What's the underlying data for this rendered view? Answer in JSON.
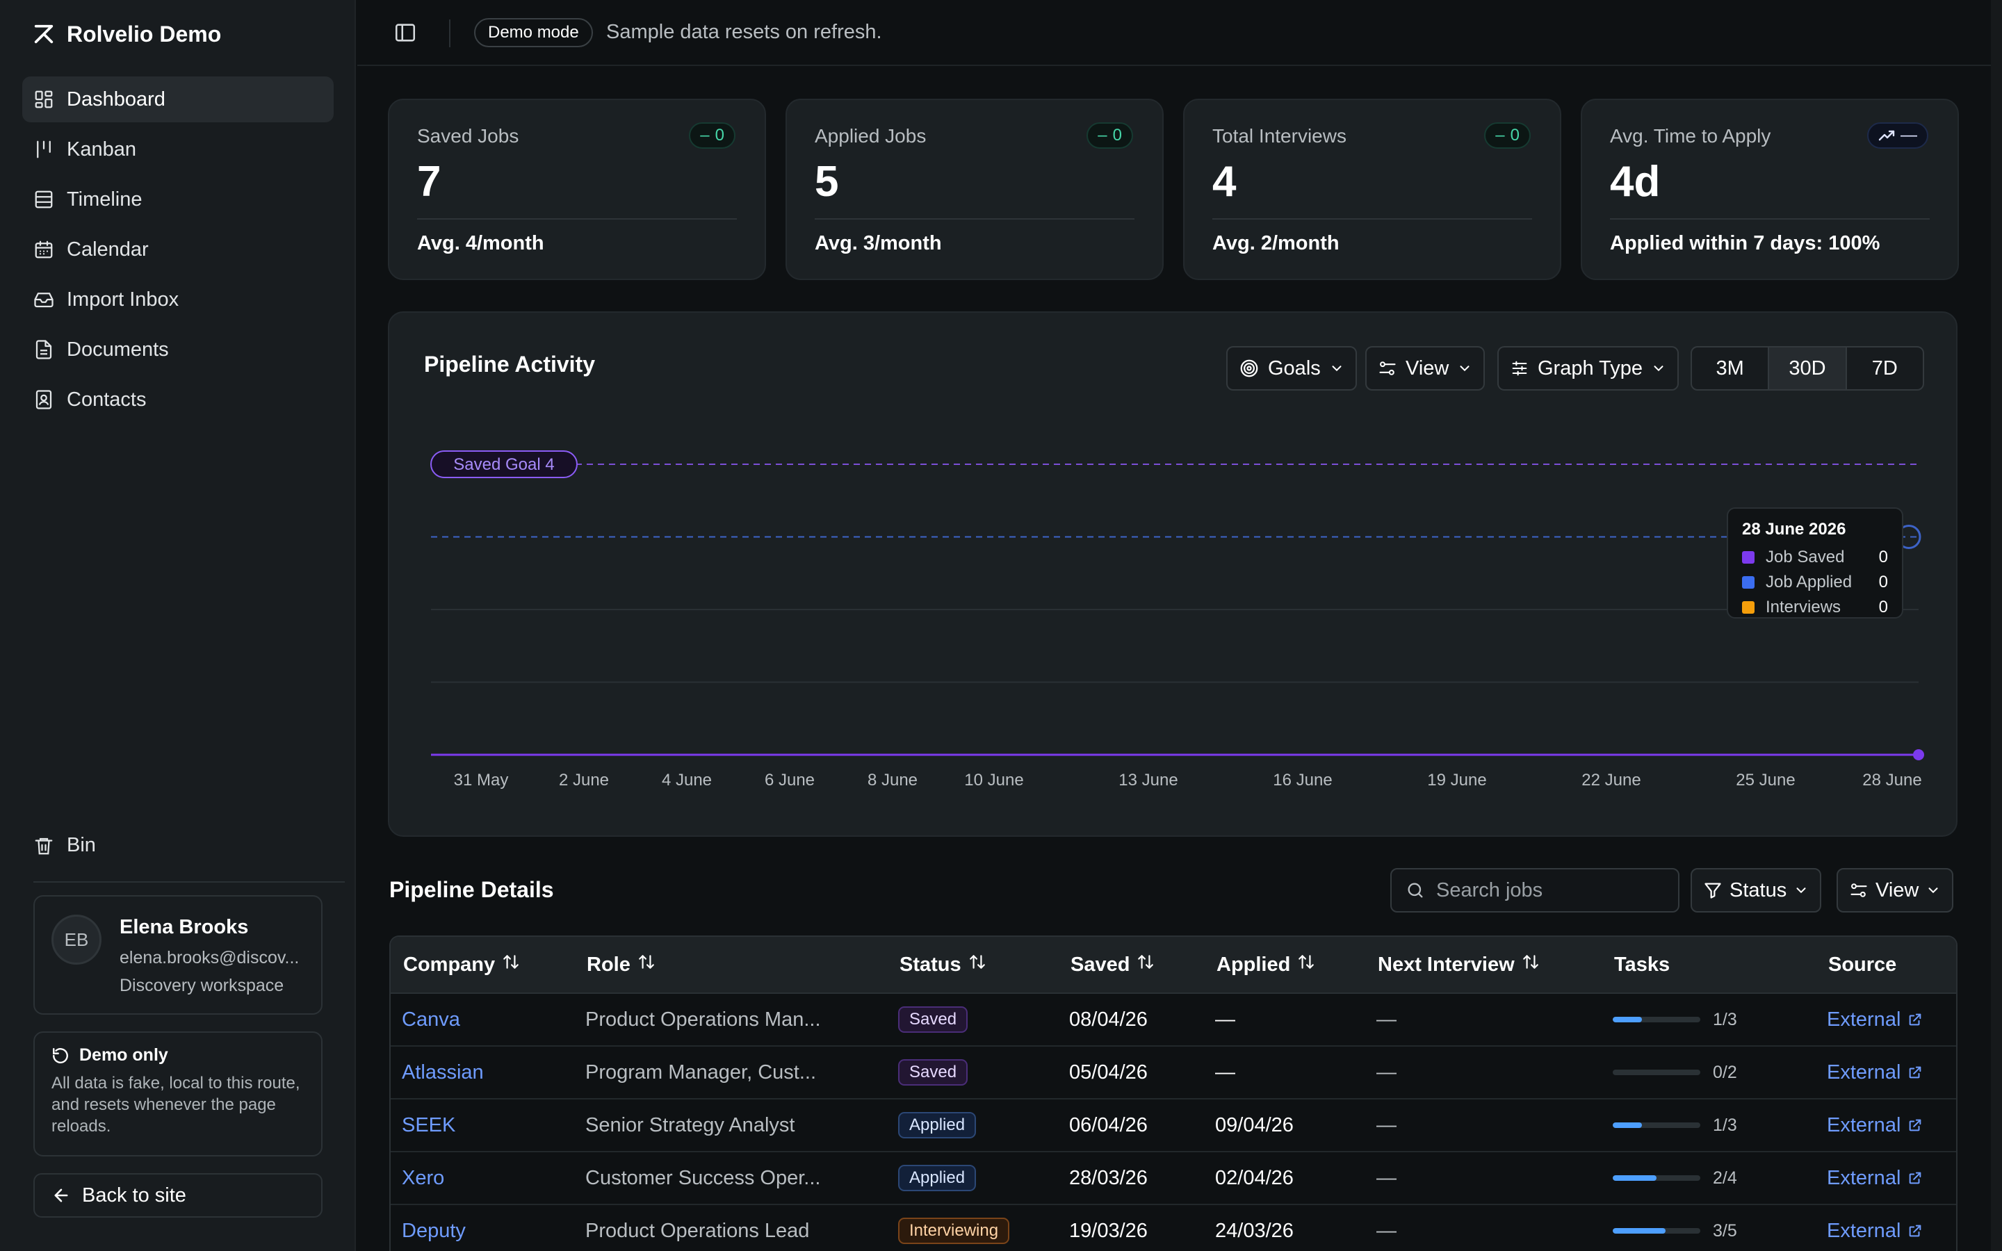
{
  "app": {
    "name": "Rolvelio Demo"
  },
  "sidebar": {
    "items": [
      {
        "label": "Dashboard",
        "icon": "dashboard-icon",
        "active": true
      },
      {
        "label": "Kanban",
        "icon": "kanban-icon"
      },
      {
        "label": "Timeline",
        "icon": "timeline-icon"
      },
      {
        "label": "Calendar",
        "icon": "calendar-icon"
      },
      {
        "label": "Import Inbox",
        "icon": "inbox-icon"
      },
      {
        "label": "Documents",
        "icon": "document-icon"
      },
      {
        "label": "Contacts",
        "icon": "contacts-icon"
      }
    ],
    "bin_label": "Bin",
    "profile": {
      "initials": "EB",
      "name": "Elena Brooks",
      "email": "elena.brooks@discov...",
      "workspace": "Discovery workspace"
    },
    "demo_notice": {
      "title": "Demo only",
      "text": "All data is fake, local to this route, and resets whenever the page reloads."
    },
    "back_label": "Back to site"
  },
  "topbar": {
    "badge": "Demo mode",
    "text": "Sample data resets on refresh."
  },
  "stats": [
    {
      "label": "Saved Jobs",
      "value": "7",
      "trend": "0",
      "footer": "Avg. 4/month"
    },
    {
      "label": "Applied Jobs",
      "value": "5",
      "trend": "0",
      "footer": "Avg. 3/month"
    },
    {
      "label": "Total Interviews",
      "value": "4",
      "trend": "0",
      "footer": "Avg. 2/month"
    },
    {
      "label": "Avg. Time to Apply",
      "value": "4d",
      "trend": "—",
      "footer": "Applied within 7 days: 100%"
    }
  ],
  "pipeline_activity": {
    "title": "Pipeline Activity",
    "controls": {
      "goals": "Goals",
      "view": "View",
      "graph_type": "Graph Type"
    },
    "ranges": [
      "3M",
      "30D",
      "7D"
    ],
    "selected_range": "30D",
    "goal_label": "Saved Goal 4",
    "tooltip": {
      "date": "28 June 2026",
      "rows": [
        {
          "label": "Job Saved",
          "value": "0",
          "color": "#7c3aed"
        },
        {
          "label": "Job Applied",
          "value": "0",
          "color": "#3b6df0"
        },
        {
          "label": "Interviews",
          "value": "0",
          "color": "#f59e0b"
        }
      ]
    }
  },
  "chart_data": {
    "type": "line",
    "x": [
      "31 May",
      "2 June",
      "4 June",
      "6 June",
      "8 June",
      "10 June",
      "13 June",
      "16 June",
      "19 June",
      "22 June",
      "25 June",
      "28 June"
    ],
    "series": [
      {
        "name": "Job Saved",
        "values": [
          0,
          0,
          0,
          0,
          0,
          0,
          0,
          0,
          0,
          0,
          0,
          0
        ],
        "color": "#7c3aed"
      },
      {
        "name": "Job Applied",
        "values": [
          0,
          0,
          0,
          0,
          0,
          0,
          0,
          0,
          0,
          0,
          0,
          0
        ],
        "color": "#3b6df0"
      },
      {
        "name": "Interviews",
        "values": [
          0,
          0,
          0,
          0,
          0,
          0,
          0,
          0,
          0,
          0,
          0,
          0
        ],
        "color": "#f59e0b"
      }
    ],
    "goals": [
      {
        "label": "Saved Goal 4",
        "value": 4,
        "color": "#7c3aed"
      },
      {
        "value": 3,
        "color": "#3b6df0"
      }
    ],
    "ylim": [
      0,
      4
    ],
    "grid": true
  },
  "pipeline_details": {
    "title": "Pipeline Details",
    "search_placeholder": "Search jobs",
    "status_filter": "Status",
    "view_label": "View",
    "columns": [
      "Company",
      "Role",
      "Status",
      "Saved",
      "Applied",
      "Next Interview",
      "Tasks",
      "Source"
    ],
    "rows": [
      {
        "company": "Canva",
        "role": "Product Operations Man...",
        "status": "Saved",
        "saved": "08/04/26",
        "applied": "—",
        "next": "—",
        "tasks": "1/3",
        "progress": 0.33,
        "source": "External"
      },
      {
        "company": "Atlassian",
        "role": "Program Manager, Cust...",
        "status": "Saved",
        "saved": "05/04/26",
        "applied": "—",
        "next": "—",
        "tasks": "0/2",
        "progress": 0,
        "source": "External"
      },
      {
        "company": "SEEK",
        "role": "Senior Strategy Analyst",
        "status": "Applied",
        "saved": "06/04/26",
        "applied": "09/04/26",
        "next": "—",
        "tasks": "1/3",
        "progress": 0.33,
        "source": "External"
      },
      {
        "company": "Xero",
        "role": "Customer Success Oper...",
        "status": "Applied",
        "saved": "28/03/26",
        "applied": "02/04/26",
        "next": "—",
        "tasks": "2/4",
        "progress": 0.5,
        "source": "External"
      },
      {
        "company": "Deputy",
        "role": "Product Operations Lead",
        "status": "Interviewing",
        "saved": "19/03/26",
        "applied": "24/03/26",
        "next": "—",
        "tasks": "3/5",
        "progress": 0.6,
        "source": "External"
      }
    ]
  }
}
